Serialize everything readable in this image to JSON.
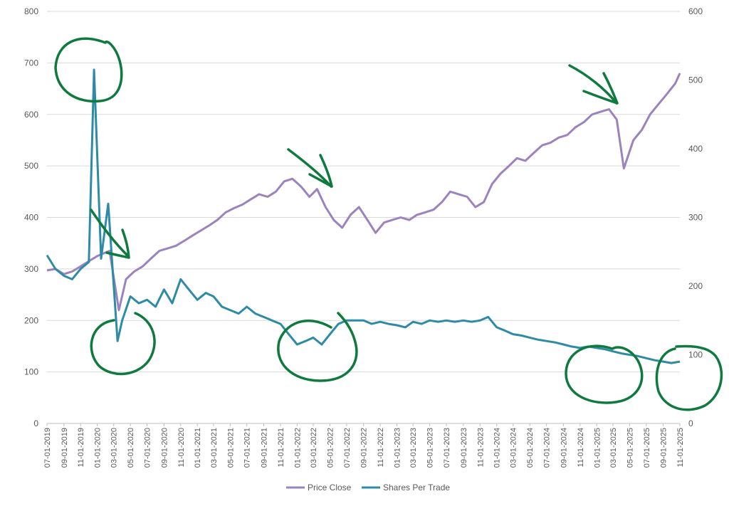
{
  "chart_data": {
    "type": "line",
    "title": "",
    "xlabel": "",
    "ylabel": "",
    "y2label": "",
    "x_range": [
      "2019-07-01",
      "2025-11-01"
    ],
    "ylim_left": [
      0,
      800
    ],
    "ylim_right": [
      0,
      600
    ],
    "y_ticks_left": [
      "0",
      "100",
      "200",
      "300",
      "400",
      "500",
      "600",
      "700",
      "800"
    ],
    "y_ticks_right": [
      "0",
      "100",
      "200",
      "300",
      "400",
      "500",
      "600"
    ],
    "x_ticks": [
      "07-01-2019",
      "09-01-2019",
      "11-01-2019",
      "01-01-2020",
      "03-01-2020",
      "05-01-2020",
      "07-01-2020",
      "09-01-2020",
      "11-01-2020",
      "01-01-2021",
      "03-01-2021",
      "05-01-2021",
      "07-01-2021",
      "09-01-2021",
      "11-01-2021",
      "01-01-2022",
      "03-01-2022",
      "05-01-2022",
      "07-01-2022",
      "09-01-2022",
      "11-01-2022",
      "01-01-2023",
      "03-01-2023",
      "05-01-2023",
      "07-01-2023",
      "09-01-2023",
      "11-01-2023",
      "01-01-2024",
      "03-01-2024",
      "05-01-2024",
      "07-01-2024",
      "09-01-2024",
      "11-01-2024",
      "01-01-2025",
      "03-01-2025",
      "05-01-2025",
      "07-01-2025",
      "09-01-2025",
      "11-01-2025"
    ],
    "grid": true,
    "legend_position": "bottom",
    "series": [
      {
        "name": "Price Close",
        "axis": "left",
        "color": "#9B84BE",
        "x": [
          "2019-07-01",
          "2019-08-01",
          "2019-09-01",
          "2019-10-01",
          "2019-11-01",
          "2019-12-01",
          "2020-01-01",
          "2020-02-15",
          "2020-03-20",
          "2020-04-15",
          "2020-05-15",
          "2020-06-15",
          "2020-07-15",
          "2020-08-15",
          "2020-09-15",
          "2020-10-15",
          "2020-11-15",
          "2020-12-15",
          "2021-01-15",
          "2021-02-15",
          "2021-03-15",
          "2021-04-15",
          "2021-05-15",
          "2021-06-15",
          "2021-07-15",
          "2021-08-15",
          "2021-09-15",
          "2021-10-15",
          "2021-11-15",
          "2021-12-15",
          "2022-01-15",
          "2022-02-15",
          "2022-03-15",
          "2022-04-15",
          "2022-05-15",
          "2022-06-15",
          "2022-07-15",
          "2022-08-15",
          "2022-09-15",
          "2022-10-15",
          "2022-11-15",
          "2022-12-15",
          "2023-01-15",
          "2023-02-15",
          "2023-03-15",
          "2023-04-15",
          "2023-05-15",
          "2023-06-15",
          "2023-07-15",
          "2023-08-15",
          "2023-09-15",
          "2023-10-15",
          "2023-11-15",
          "2023-12-15",
          "2024-01-15",
          "2024-02-15",
          "2024-03-15",
          "2024-04-15",
          "2024-05-15",
          "2024-06-15",
          "2024-07-15",
          "2024-08-15",
          "2024-09-15",
          "2024-10-15",
          "2024-11-15",
          "2024-12-15",
          "2025-01-15",
          "2025-02-15",
          "2025-03-15",
          "2025-04-10",
          "2025-05-15",
          "2025-06-15",
          "2025-07-15",
          "2025-08-15",
          "2025-09-15",
          "2025-10-15",
          "2025-11-01"
        ],
        "values": [
          297,
          300,
          290,
          295,
          305,
          315,
          325,
          335,
          220,
          280,
          295,
          305,
          320,
          335,
          340,
          345,
          355,
          365,
          375,
          385,
          395,
          410,
          418,
          425,
          435,
          445,
          440,
          450,
          470,
          475,
          460,
          440,
          455,
          420,
          395,
          380,
          405,
          420,
          395,
          370,
          390,
          395,
          400,
          395,
          405,
          410,
          415,
          430,
          450,
          445,
          440,
          420,
          430,
          465,
          485,
          500,
          515,
          510,
          525,
          540,
          545,
          555,
          560,
          575,
          585,
          600,
          605,
          610,
          590,
          495,
          550,
          570,
          600,
          620,
          640,
          660,
          680
        ]
      },
      {
        "name": "Shares Per Trade",
        "axis": "right",
        "color": "#2E8BA5",
        "x": [
          "2019-07-01",
          "2019-08-01",
          "2019-09-01",
          "2019-10-01",
          "2019-11-01",
          "2019-12-01",
          "2019-12-20",
          "2020-01-15",
          "2020-02-10",
          "2020-02-25",
          "2020-03-15",
          "2020-04-01",
          "2020-05-01",
          "2020-06-01",
          "2020-07-01",
          "2020-08-01",
          "2020-09-01",
          "2020-10-01",
          "2020-11-01",
          "2020-12-01",
          "2021-01-01",
          "2021-02-01",
          "2021-03-01",
          "2021-04-01",
          "2021-05-01",
          "2021-06-01",
          "2021-07-01",
          "2021-08-01",
          "2021-09-01",
          "2021-10-01",
          "2021-11-01",
          "2021-12-01",
          "2022-01-01",
          "2022-02-01",
          "2022-03-01",
          "2022-04-01",
          "2022-05-01",
          "2022-06-01",
          "2022-07-01",
          "2022-08-01",
          "2022-09-01",
          "2022-10-01",
          "2022-11-01",
          "2022-12-01",
          "2023-01-01",
          "2023-02-01",
          "2023-03-01",
          "2023-04-01",
          "2023-05-01",
          "2023-06-01",
          "2023-07-01",
          "2023-08-01",
          "2023-09-01",
          "2023-10-01",
          "2023-11-01",
          "2023-12-01",
          "2024-01-01",
          "2024-02-01",
          "2024-03-01",
          "2024-04-01",
          "2024-05-01",
          "2024-06-01",
          "2024-07-01",
          "2024-08-01",
          "2024-09-01",
          "2024-10-01",
          "2024-11-01",
          "2024-12-01",
          "2025-01-01",
          "2025-02-01",
          "2025-03-01",
          "2025-04-01",
          "2025-05-01",
          "2025-06-01",
          "2025-07-01",
          "2025-08-01",
          "2025-09-01",
          "2025-10-01",
          "2025-11-01"
        ],
        "values": [
          245,
          225,
          215,
          210,
          225,
          235,
          515,
          240,
          320,
          230,
          120,
          150,
          185,
          175,
          180,
          170,
          195,
          175,
          210,
          195,
          180,
          190,
          185,
          170,
          165,
          160,
          170,
          160,
          155,
          150,
          145,
          130,
          115,
          120,
          125,
          115,
          130,
          145,
          150,
          150,
          150,
          145,
          148,
          145,
          143,
          140,
          148,
          145,
          150,
          148,
          150,
          148,
          150,
          148,
          150,
          155,
          140,
          135,
          130,
          128,
          125,
          122,
          120,
          118,
          115,
          112,
          110,
          112,
          110,
          108,
          105,
          102,
          100,
          98,
          95,
          92,
          90,
          88,
          90
        ]
      }
    ]
  },
  "legend": {
    "price_close_label": "Price Close",
    "shares_per_trade_label": "Shares Per Trade"
  }
}
